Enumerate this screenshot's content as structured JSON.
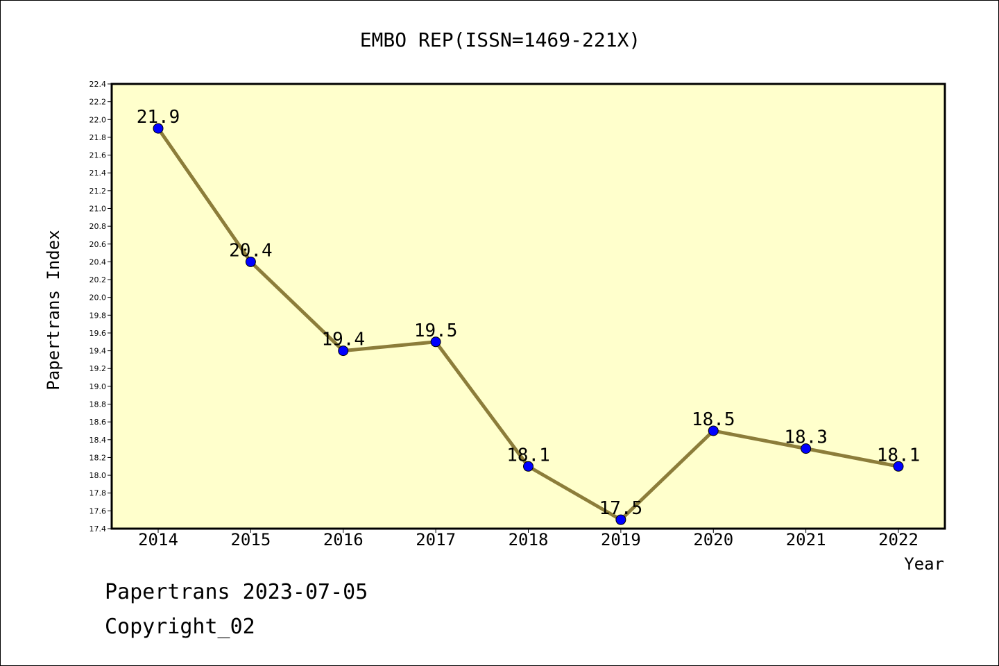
{
  "chart_data": {
    "type": "line",
    "title": "EMBO REP(ISSN=1469-221X)",
    "xlabel": "Year",
    "ylabel": "Papertrans Index",
    "categories": [
      "2014",
      "2015",
      "2016",
      "2017",
      "2018",
      "2019",
      "2020",
      "2021",
      "2022"
    ],
    "values": [
      21.9,
      20.4,
      19.4,
      19.5,
      18.1,
      17.5,
      18.5,
      18.3,
      18.1
    ],
    "data_labels": [
      "21.9",
      "20.4",
      "19.4",
      "19.5",
      "18.1",
      "17.5",
      "18.5",
      "18.3",
      "18.1"
    ],
    "ylim": [
      17.4,
      22.4
    ],
    "ytick_step": 0.2,
    "grid": false,
    "colors": {
      "plot_background": "#ffffcc",
      "line": "#8c7d3a",
      "marker": "#0000ff",
      "marker_edge": "#000000"
    }
  },
  "footer": {
    "line1": "Papertrans 2023-07-05",
    "line2": "Copyright_02"
  }
}
